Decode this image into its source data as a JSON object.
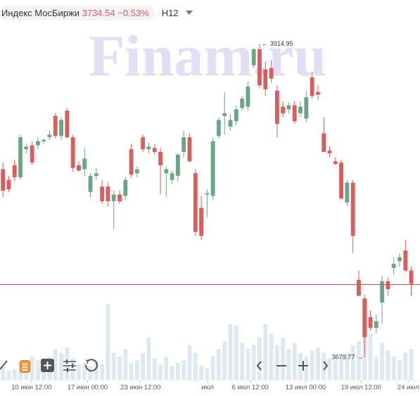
{
  "chart_data": {
    "type": "candlestick",
    "name": "Индекс МосБиржи",
    "last_price": 3734.54,
    "change": "−0.53%",
    "timeframe": "H12",
    "watermark": "Finam.ru",
    "up_color": "#6aa684",
    "down_color": "#dc5b5b",
    "volume_color": "#dde8f1",
    "open": [
      3821,
      3813,
      3824,
      3815,
      3836,
      3839,
      3839,
      3842,
      3845,
      3861,
      3846,
      3865,
      3845,
      3824,
      3821,
      3804,
      3816,
      3808,
      3808,
      3797,
      3802,
      3801,
      3836,
      3818,
      3845,
      3836,
      3837,
      3834,
      3818,
      3813,
      3816,
      3834,
      3845,
      3818,
      3792,
      3802,
      3801,
      3846,
      3861,
      3853,
      3857,
      3867,
      3868,
      3899,
      3911,
      3896,
      3897,
      3880,
      3868,
      3866,
      3869,
      3863,
      3859,
      3890,
      3879,
      3848,
      3835,
      3827,
      3826,
      3796,
      3811,
      3738,
      3724,
      3710,
      3702,
      3721,
      3737,
      3747,
      3752,
      3760,
      3745
    ],
    "high": [
      3826,
      3816,
      3828,
      3847,
      3840,
      3842,
      3845,
      3844,
      3850,
      3863,
      3860,
      3867,
      3847,
      3827,
      3837,
      3818,
      3822,
      3813,
      3811,
      3805,
      3805,
      3815,
      3840,
      3823,
      3847,
      3841,
      3840,
      3837,
      3823,
      3820,
      3833,
      3850,
      3848,
      3821,
      3801,
      3806,
      3845,
      3860,
      3879,
      3862,
      3869,
      3876,
      3887,
      3912,
      3915,
      3902,
      3903,
      3884,
      3872,
      3871,
      3872,
      3872,
      3880,
      3894,
      3884,
      3860,
      3838,
      3830,
      3828,
      3813,
      3813,
      3745,
      3727,
      3715,
      3712,
      3741,
      3740,
      3755,
      3758,
      3768,
      3748
    ],
    "low": [
      3800,
      3804,
      3812,
      3813,
      3833,
      3824,
      3836,
      3840,
      3843,
      3844,
      3843,
      3844,
      3819,
      3819,
      3816,
      3800,
      3813,
      3795,
      3793,
      3776,
      3795,
      3798,
      3815,
      3815,
      3834,
      3833,
      3832,
      3802,
      3800,
      3810,
      3812,
      3830,
      3826,
      3771,
      3768,
      3785,
      3798,
      3844,
      3847,
      3850,
      3854,
      3865,
      3865,
      3897,
      3882,
      3876,
      3886,
      3845,
      3860,
      3863,
      3855,
      3860,
      3856,
      3874,
      3873,
      3834,
      3830,
      3824,
      3798,
      3793,
      3758,
      3726,
      3680,
      3700,
      3698,
      3705,
      3726,
      3742,
      3748,
      3744,
      3726
    ],
    "close": [
      3805,
      3806,
      3815,
      3845,
      3838,
      3826,
      3842,
      3843,
      3847,
      3846,
      3858,
      3845,
      3822,
      3820,
      3829,
      3816,
      3818,
      3797,
      3797,
      3802,
      3797,
      3813,
      3817,
      3821,
      3836,
      3838,
      3834,
      3824,
      3821,
      3818,
      3832,
      3845,
      3827,
      3774,
      3771,
      3803,
      3842,
      3858,
      3863,
      3858,
      3866,
      3874,
      3883,
      3911,
      3884,
      3881,
      3889,
      3855,
      3863,
      3869,
      3857,
      3868,
      3875,
      3876,
      3877,
      3834,
      3833,
      3825,
      3799,
      3811,
      3771,
      3726,
      3695,
      3702,
      3707,
      3737,
      3731,
      3750,
      3755,
      3745,
      3735
    ],
    "volume": [
      18,
      12,
      14,
      22,
      20,
      30,
      25,
      28,
      30,
      40,
      35,
      42,
      28,
      20,
      22,
      18,
      25,
      20,
      98,
      35,
      30,
      40,
      22,
      25,
      35,
      55,
      28,
      20,
      30,
      18,
      22,
      25,
      45,
      35,
      18,
      15,
      30,
      40,
      50,
      72,
      70,
      48,
      40,
      45,
      55,
      72,
      60,
      45,
      55,
      40,
      48,
      35,
      30,
      38,
      42,
      35,
      28,
      25,
      30,
      35,
      45,
      50,
      55,
      60,
      30,
      48,
      38,
      30,
      25,
      35,
      40
    ],
    "high_label": 3914.95,
    "low_label": 3679.77,
    "xlim": [
      -0.5,
      71.5
    ],
    "ylim": [
      3663,
      3948
    ],
    "y2lim": [
      0,
      100
    ],
    "xticks": [
      {
        "value": 4.9,
        "label": "10 июн 12:00"
      },
      {
        "value": 14.5,
        "label": "17 июн 00:00"
      },
      {
        "value": 23.6,
        "label": "23 июн 12:00"
      },
      {
        "value": 35.1,
        "label": "июл"
      },
      {
        "value": 42.4,
        "label": "6 июл 12:00"
      },
      {
        "value": 51.9,
        "label": "13 июл 00:00"
      },
      {
        "value": 61.4,
        "label": "19 июл 12:00"
      },
      {
        "value": 69.5,
        "label": "24 июл"
      }
    ]
  }
}
